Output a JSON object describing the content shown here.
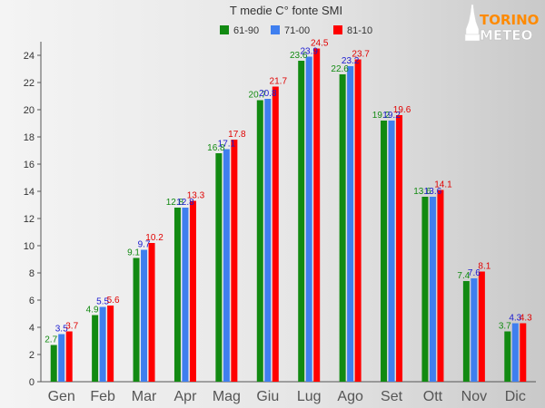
{
  "chart_data": {
    "type": "bar",
    "title": "T medie C° fonte SMI",
    "xlabel": "",
    "ylabel": "",
    "ylim": [
      0,
      25
    ],
    "yticks": [
      0,
      2,
      4,
      6,
      8,
      10,
      12,
      14,
      16,
      18,
      20,
      22,
      24
    ],
    "grid": false,
    "legend_position": "top-center",
    "categories": [
      "Gen",
      "Feb",
      "Mar",
      "Apr",
      "Mag",
      "Giu",
      "Lug",
      "Ago",
      "Set",
      "Ott",
      "Nov",
      "Dic"
    ],
    "series": [
      {
        "name": "61-90",
        "color": "#128a12",
        "values": [
          2.7,
          4.9,
          9.1,
          12.8,
          16.8,
          20.7,
          23.6,
          22.6,
          19.2,
          13.6,
          7.4,
          3.7
        ]
      },
      {
        "name": "71-00",
        "color": "#3f7fef",
        "values": [
          3.5,
          5.5,
          9.7,
          12.8,
          17.1,
          20.8,
          23.9,
          23.2,
          19.2,
          13.6,
          7.6,
          4.3
        ]
      },
      {
        "name": "81-10",
        "color": "#ff0000",
        "values": [
          3.7,
          5.6,
          10.2,
          13.3,
          17.8,
          21.7,
          24.5,
          23.7,
          19.6,
          14.1,
          8.1,
          4.3
        ]
      }
    ],
    "label_colors": [
      "#128a12",
      "#1a1ad0",
      "#e00000"
    ]
  },
  "logo": {
    "line1": "TORINO",
    "line2": "METEO"
  }
}
